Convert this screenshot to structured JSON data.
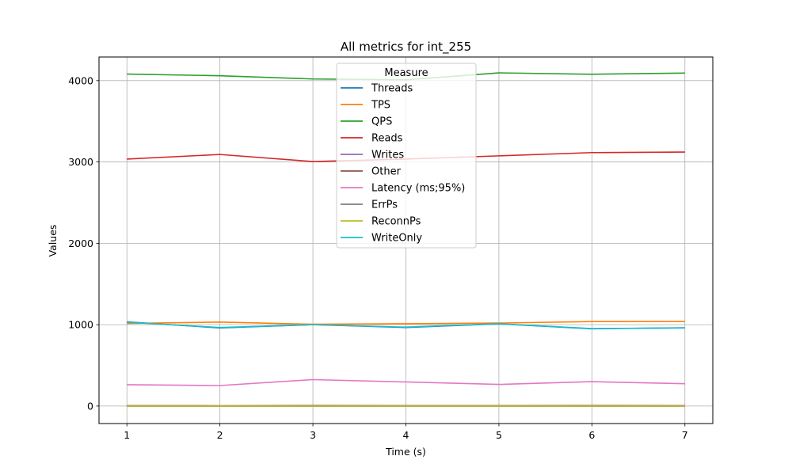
{
  "chart_data": {
    "type": "line",
    "title": "All metrics for int_255",
    "xlabel": "Time (s)",
    "ylabel": "Values",
    "x": [
      1,
      2,
      3,
      4,
      5,
      6,
      7
    ],
    "xticks": [
      1,
      2,
      3,
      4,
      5,
      6,
      7
    ],
    "yticks": [
      0,
      1000,
      2000,
      3000,
      4000
    ],
    "xlim": [
      0.7,
      7.3
    ],
    "ylim": [
      -215,
      4290
    ],
    "grid": true,
    "legend": {
      "title": "Measure",
      "placement": "top-center"
    },
    "series": [
      {
        "name": "Threads",
        "color": "#1f77b4",
        "values": [
          1035,
          960,
          1000,
          965,
          1010,
          950,
          962
        ]
      },
      {
        "name": "TPS",
        "color": "#ff7f0e",
        "values": [
          1015,
          1032,
          1005,
          1012,
          1020,
          1038,
          1040
        ]
      },
      {
        "name": "QPS",
        "color": "#2ca02c",
        "values": [
          4080,
          4060,
          4020,
          4010,
          4095,
          4078,
          4092
        ]
      },
      {
        "name": "Reads",
        "color": "#d62728",
        "values": [
          3035,
          3092,
          3005,
          3035,
          3075,
          3115,
          3122
        ]
      },
      {
        "name": "Writes",
        "color": "#9467bd",
        "values": [
          0,
          0,
          0,
          0,
          0,
          0,
          0
        ]
      },
      {
        "name": "Other",
        "color": "#8c564b",
        "values": [
          5,
          4,
          6,
          5,
          5,
          6,
          5
        ]
      },
      {
        "name": "Latency (ms;95%)",
        "color": "#e377c2",
        "values": [
          262,
          252,
          325,
          296,
          266,
          300,
          275
        ]
      },
      {
        "name": "ErrPs",
        "color": "#7f7f7f",
        "values": [
          0,
          0,
          0,
          0,
          0,
          0,
          0
        ]
      },
      {
        "name": "ReconnPs",
        "color": "#bcbd22",
        "values": [
          0,
          0,
          0,
          0,
          0,
          0,
          0
        ]
      },
      {
        "name": "WriteOnly",
        "color": "#17becf",
        "values": [
          1030,
          965,
          1000,
          970,
          1012,
          952,
          960
        ]
      }
    ]
  }
}
